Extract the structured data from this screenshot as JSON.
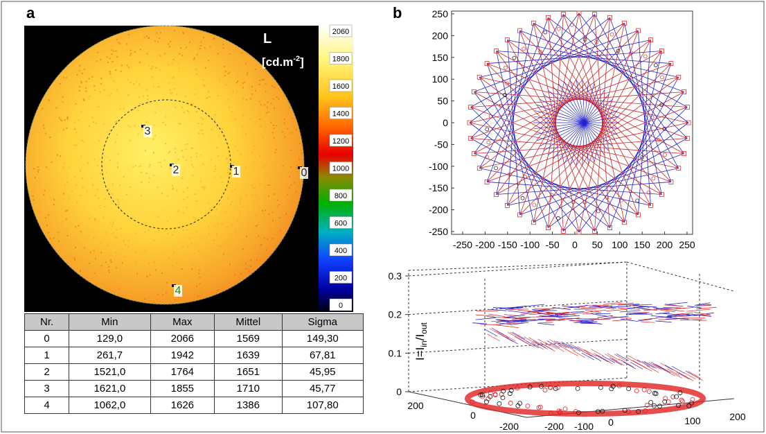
{
  "panel_a": {
    "label": "a",
    "legend_symbol": "L",
    "legend_unit": "[cd.m",
    "legend_unit_exp": "-2",
    "legend_unit_end": "]",
    "colorbar_ticks": [
      2060,
      1800,
      1600,
      1400,
      1200,
      1000,
      800,
      600,
      400,
      200,
      0
    ],
    "regions": [
      "0",
      "1",
      "2",
      "3",
      "4"
    ],
    "table": {
      "header": [
        "Nr.",
        "Min",
        "Max",
        "Mittel",
        "Sigma"
      ],
      "rows": [
        [
          "0",
          "129,0",
          "2066",
          "1569",
          "149,30"
        ],
        [
          "1",
          "261,7",
          "1942",
          "1639",
          "67,81"
        ],
        [
          "2",
          "1521,0",
          "1764",
          "1651",
          "45,95"
        ],
        [
          "3",
          "1621,0",
          "1855",
          "1710",
          "45,77"
        ],
        [
          "4",
          "1062,0",
          "1626",
          "1386",
          "107,80"
        ]
      ]
    }
  },
  "panel_b": {
    "label": "b",
    "top_plot": {
      "xticks": [
        -250,
        -200,
        -150,
        -100,
        -50,
        0,
        50,
        100,
        150,
        200,
        250
      ],
      "yticks": [
        250,
        200,
        150,
        100,
        50,
        0,
        -50,
        -100,
        -150,
        -200,
        -250
      ]
    },
    "bottom_plot": {
      "z_label": {
        "main": "I=I",
        "sub1": "in",
        "mid": "/I",
        "sub2": "out"
      },
      "zticks": [
        0.3,
        0.2,
        0.1,
        0
      ],
      "x_ticks": [
        200,
        0,
        -200
      ],
      "y_ticks": [
        -200,
        -100,
        0,
        100,
        200
      ]
    }
  }
}
